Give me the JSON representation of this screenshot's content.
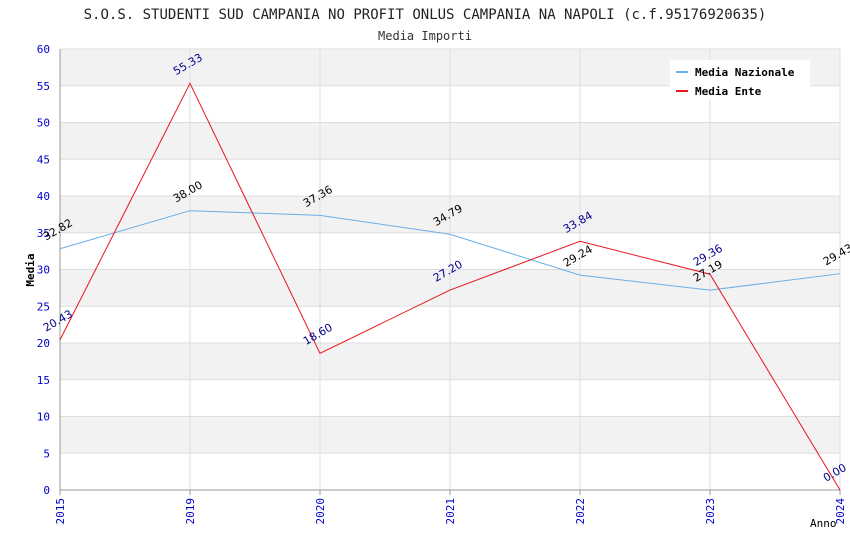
{
  "chart_data": {
    "type": "line",
    "title": "S.O.S. STUDENTI SUD CAMPANIA NO PROFIT ONLUS CAMPANIA NA NAPOLI (c.f.95176920635)",
    "subtitle": "Media Importi",
    "xlabel": "Anno",
    "ylabel": "Media",
    "categories": [
      "2015",
      "2019",
      "2020",
      "2021",
      "2022",
      "2023",
      "2024"
    ],
    "ylim": [
      0,
      60
    ],
    "yticks": [
      0,
      5,
      10,
      15,
      20,
      25,
      30,
      35,
      40,
      45,
      50,
      55,
      60
    ],
    "grid": true,
    "legend_position": "top-right",
    "series": [
      {
        "name": "Media Nazionale",
        "color": "#6aaee8",
        "label_color": "#000000",
        "values": [
          32.82,
          38.0,
          37.36,
          34.79,
          29.24,
          27.19,
          29.43
        ],
        "labels": [
          "32.82",
          "38.00",
          "37.36",
          "34.79",
          "29.24",
          "27.19",
          "29.43"
        ]
      },
      {
        "name": "Media Ente",
        "color": "#e8141e",
        "label_color": "#00008b",
        "values": [
          20.43,
          55.33,
          18.6,
          27.2,
          33.84,
          29.36,
          0.0
        ],
        "labels": [
          "20.43",
          "55.33",
          "18.60",
          "27.20",
          "33.84",
          "29.36",
          "0.00"
        ]
      }
    ]
  }
}
